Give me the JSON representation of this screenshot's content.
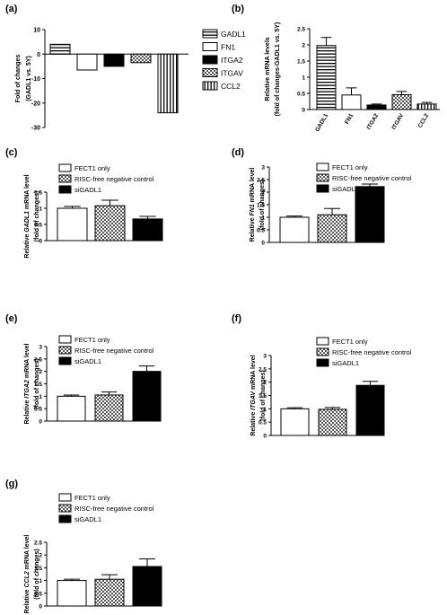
{
  "patterns": {
    "GADL1": "hstripe",
    "FN1": "white",
    "ITGA2": "black",
    "ITGAV": "checker",
    "CCL2": "vstripe",
    "FECT1 only": "white",
    "RISC-free negative control": "checker",
    "siGADL1": "black"
  },
  "chart_data": [
    {
      "panel": "(a)",
      "type": "bar",
      "categories": [
        "GADL1",
        "FN1",
        "ITGA2",
        "ITGAV",
        "CCL2"
      ],
      "values": [
        4,
        -6.5,
        -5,
        -3.5,
        -24
      ],
      "ylabel": "Fold of changes (GADL1 vs. 5Y)",
      "ylim": [
        -30,
        10
      ],
      "yticks": [
        10,
        0,
        -10,
        -20,
        -30
      ],
      "legend": [
        "GADL1",
        "FN1",
        "ITGA2",
        "ITGAV",
        "CCL2"
      ],
      "legend_position": "right"
    },
    {
      "panel": "(b)",
      "type": "bar",
      "categories": [
        "GADL1",
        "FN1",
        "ITGA2",
        "ITGAV",
        "CCL2"
      ],
      "values": [
        1.98,
        0.45,
        0.14,
        0.46,
        0.17
      ],
      "errors": [
        0.25,
        0.22,
        0.03,
        0.1,
        0.05
      ],
      "ylabel": "Relative mRNA levels (fold of changes-GADL1 vs. 5Y)",
      "ylim": [
        0,
        2.5
      ],
      "yticks": [
        0,
        0.5,
        1,
        1.5,
        2,
        2.5
      ]
    },
    {
      "panel": "(c)",
      "type": "bar",
      "categories": [
        "FECT1 only",
        "RISC-free negative control",
        "siGADL1"
      ],
      "values": [
        1.0,
        1.08,
        0.67
      ],
      "errors": [
        0.06,
        0.17,
        0.08
      ],
      "ylabel_gene": "GADL1",
      "ylim": [
        0,
        1.5
      ],
      "yticks": [
        0,
        0.5,
        1,
        1.5
      ],
      "legend": [
        "FECT1 only",
        "RISC-free negative control",
        "siGADL1"
      ]
    },
    {
      "panel": "(d)",
      "type": "bar",
      "categories": [
        "FECT1 only",
        "RISC-free negative control",
        "siGADL1"
      ],
      "values": [
        1.0,
        1.1,
        2.22
      ],
      "errors": [
        0.05,
        0.25,
        0.1
      ],
      "ylabel_gene": "FN1",
      "ylim": [
        0,
        3.0
      ],
      "yticks": [
        0,
        0.5,
        1,
        1.5,
        2,
        2.5,
        3
      ],
      "legend": [
        "FECT1 only",
        "RISC-free negative control",
        "siGADL1"
      ]
    },
    {
      "panel": "(e)",
      "type": "bar",
      "categories": [
        "FECT1 only",
        "RISC-free negative control",
        "siGADL1"
      ],
      "values": [
        1.0,
        1.05,
        2.0
      ],
      "errors": [
        0.05,
        0.12,
        0.22
      ],
      "ylabel_gene": "ITGA2",
      "ylim": [
        0,
        3.0
      ],
      "yticks": [
        0,
        0.5,
        1,
        1.5,
        2,
        2.5,
        3
      ],
      "legend": [
        "FECT1 only",
        "RISC-free negative control",
        "siGADL1"
      ]
    },
    {
      "panel": "(f)",
      "type": "bar",
      "categories": [
        "FECT1 only",
        "RISC-free negative control",
        "siGADL1"
      ],
      "values": [
        1.0,
        0.98,
        1.88
      ],
      "errors": [
        0.04,
        0.07,
        0.15
      ],
      "ylabel_gene": "ITGAV",
      "ylim": [
        0,
        3.0
      ],
      "yticks": [
        0,
        0.5,
        1,
        1.5,
        2,
        2.5,
        3
      ],
      "legend": [
        "FECT1 only",
        "RISC-free negative control",
        "siGADL1"
      ]
    },
    {
      "panel": "(g)",
      "type": "bar",
      "categories": [
        "FECT1 only",
        "RISC-free negative control",
        "siGADL1"
      ],
      "values": [
        1.0,
        1.05,
        1.55
      ],
      "errors": [
        0.05,
        0.18,
        0.3
      ],
      "ylabel_gene": "CCL2",
      "ylim": [
        0,
        2.5
      ],
      "yticks": [
        0,
        0.5,
        1,
        1.5,
        2,
        2.5
      ],
      "legend": [
        "FECT1 only",
        "RISC-free negative control",
        "siGADL1"
      ]
    }
  ]
}
